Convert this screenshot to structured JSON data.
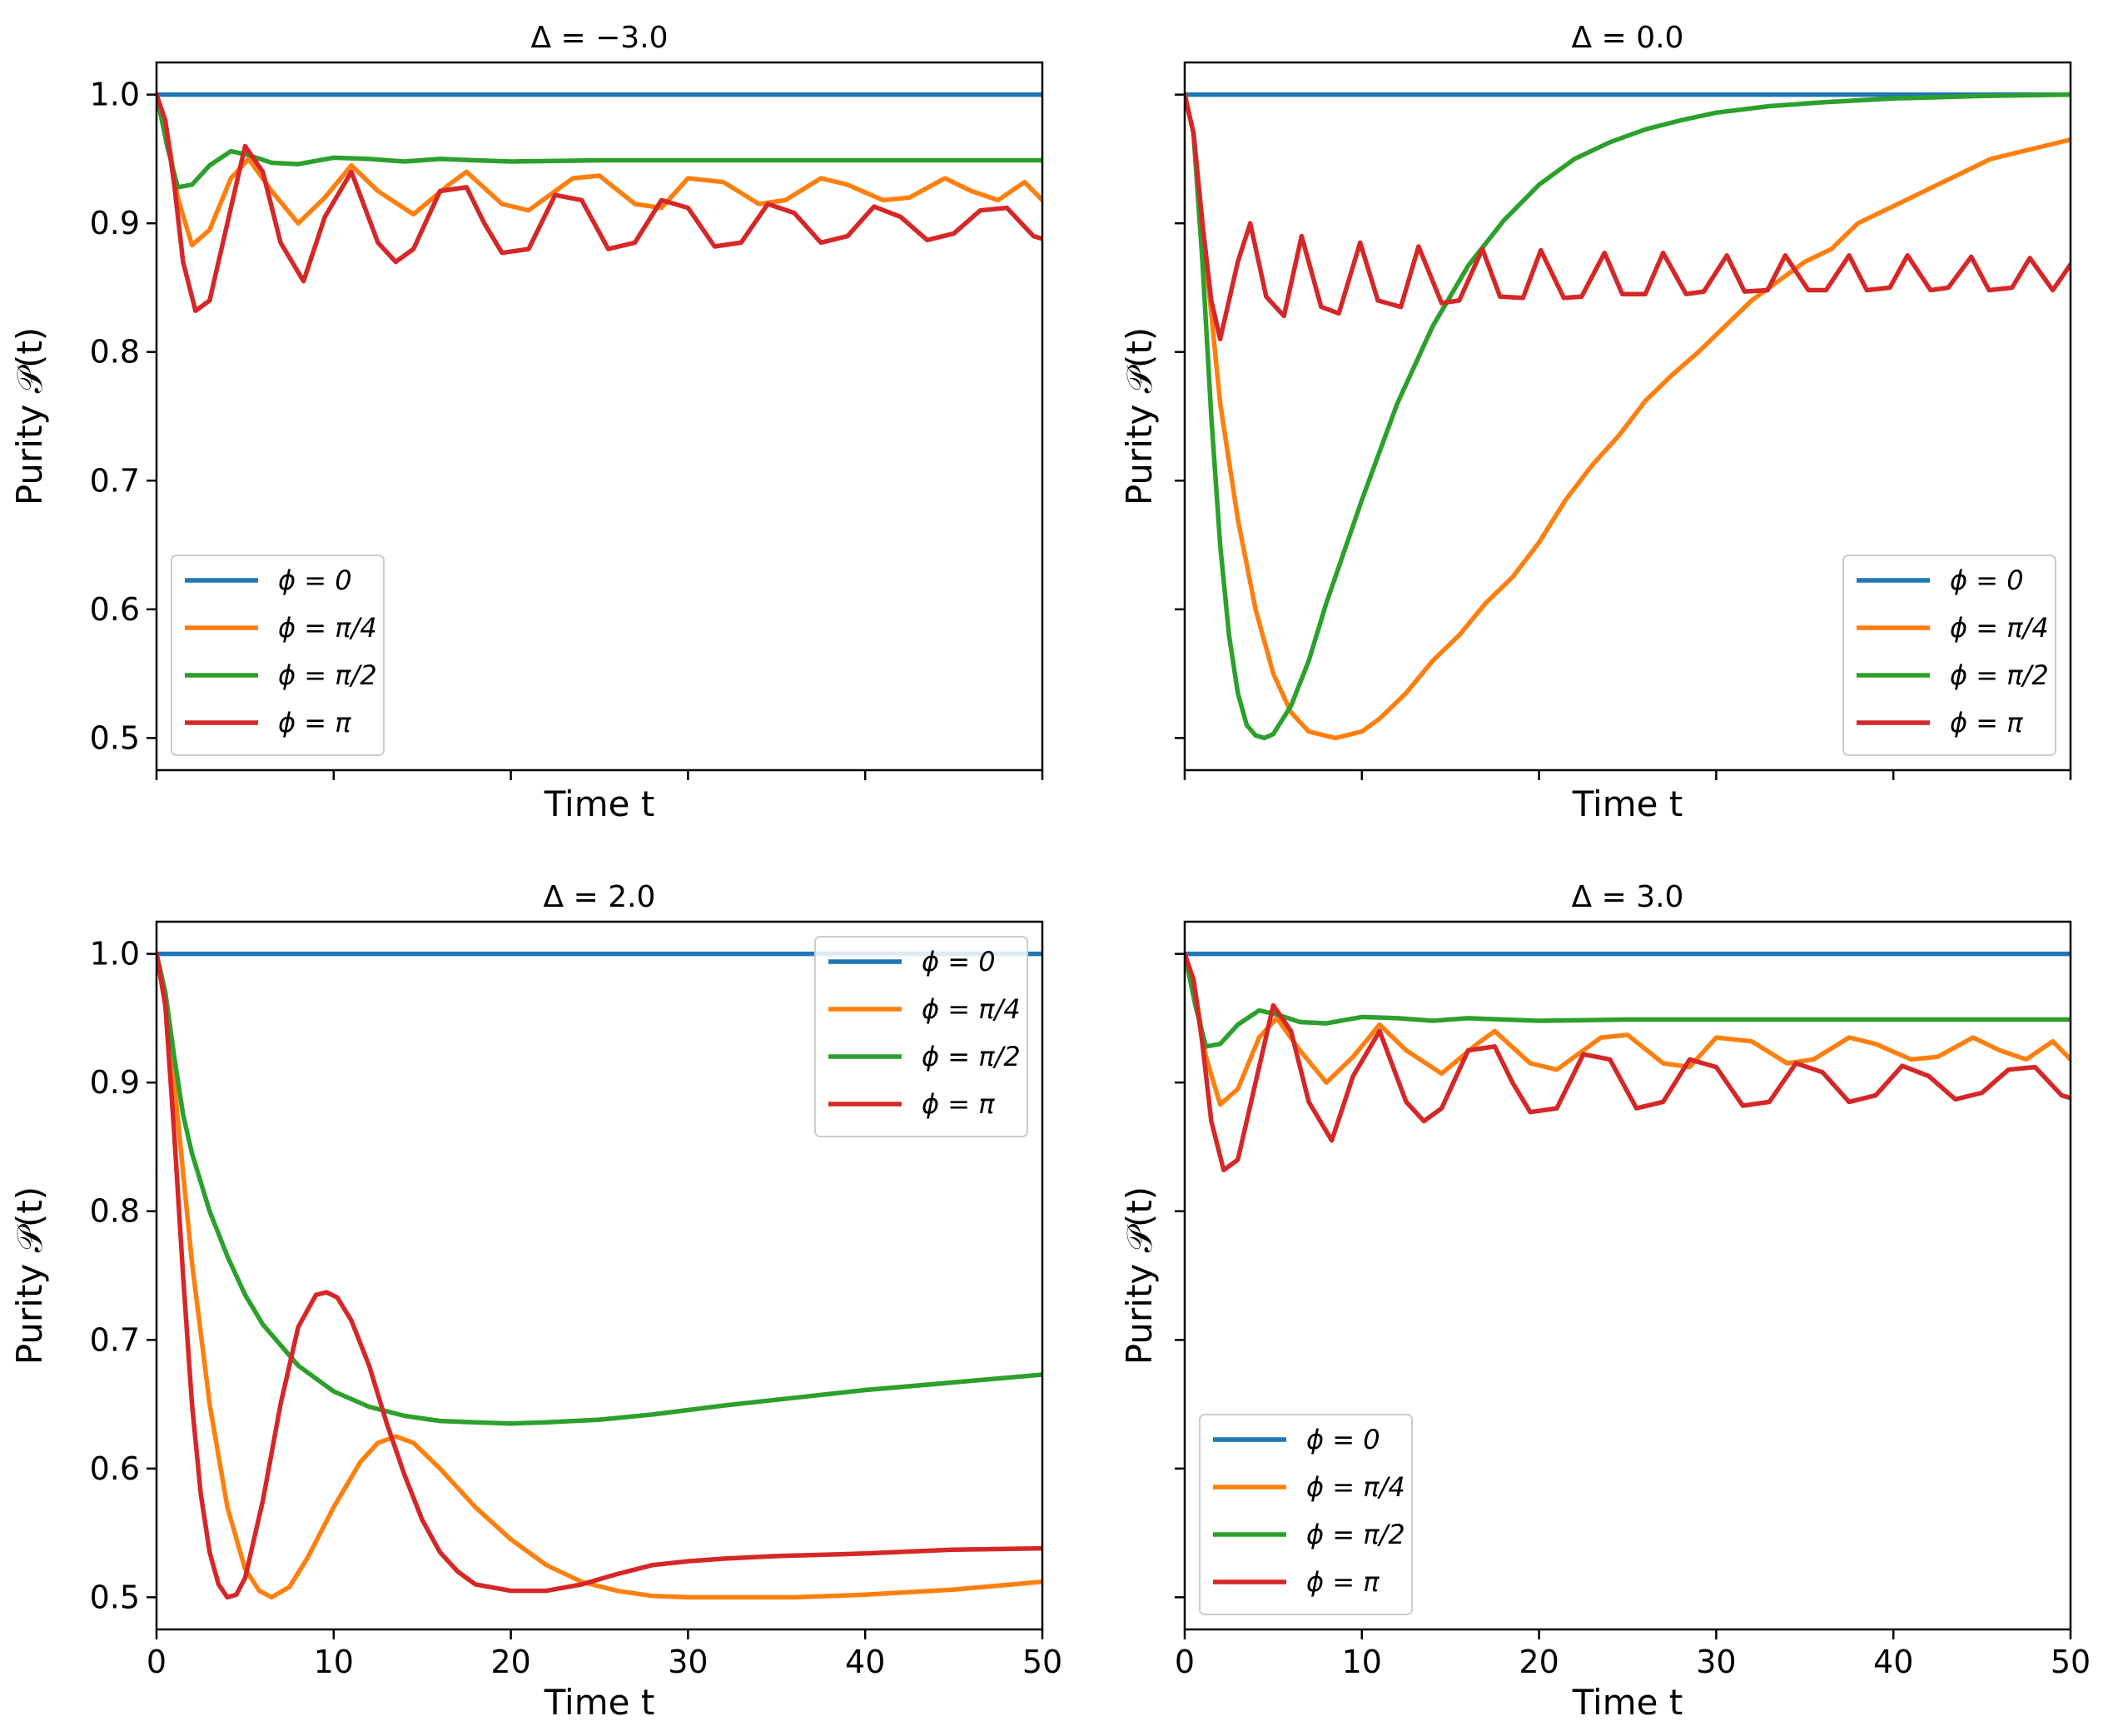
{
  "chart_data": [
    {
      "type": "line",
      "title": "Δ = −3.0",
      "xlabel": "Time t",
      "ylabel": "Purity 𝒫(t)",
      "xlim": [
        0,
        50
      ],
      "ylim": [
        0.475,
        1.025
      ],
      "xticks": [
        0,
        10,
        20,
        30,
        40,
        50
      ],
      "yticks": [
        0.5,
        0.6,
        0.7,
        0.8,
        0.9,
        1.0
      ],
      "show_xticklabels": false,
      "show_yticklabels": true,
      "legend": "lower-left",
      "series": [
        {
          "name": "ϕ = 0",
          "color": "#1f77b4",
          "x": [
            0,
            50
          ],
          "y": [
            1.0,
            1.0
          ]
        },
        {
          "name": "ϕ = π/4",
          "color": "#ff7f0e",
          "x": [
            0,
            0.6,
            1.2,
            2.0,
            3.0,
            4.2,
            5.2,
            6.5,
            8.0,
            9.5,
            11.0,
            12.5,
            14.5,
            16.5,
            17.5,
            19.5,
            21.0,
            23.5,
            25.0,
            27.0,
            28.5,
            30.0,
            32.0,
            34.0,
            35.5,
            37.5,
            39.0,
            41.0,
            42.5,
            44.5,
            46.0,
            47.5,
            49.0,
            50.0
          ],
          "y": [
            1.0,
            0.97,
            0.92,
            0.883,
            0.895,
            0.935,
            0.95,
            0.925,
            0.9,
            0.92,
            0.945,
            0.925,
            0.907,
            0.93,
            0.94,
            0.915,
            0.91,
            0.935,
            0.937,
            0.915,
            0.912,
            0.935,
            0.932,
            0.915,
            0.918,
            0.935,
            0.93,
            0.918,
            0.92,
            0.935,
            0.925,
            0.918,
            0.932,
            0.918
          ]
        },
        {
          "name": "ϕ = π/2",
          "color": "#2ca02c",
          "x": [
            0,
            0.6,
            1.2,
            2.0,
            3.0,
            4.2,
            5.2,
            6.5,
            8.0,
            10.0,
            12.0,
            14.0,
            16.0,
            18.0,
            20.0,
            25.0,
            30.0,
            35.0,
            40.0,
            45.0,
            50.0
          ],
          "y": [
            1.0,
            0.96,
            0.928,
            0.93,
            0.945,
            0.956,
            0.953,
            0.947,
            0.946,
            0.951,
            0.95,
            0.948,
            0.95,
            0.949,
            0.948,
            0.949,
            0.949,
            0.949,
            0.949,
            0.949,
            0.949
          ]
        },
        {
          "name": "ϕ = π",
          "color": "#d62728",
          "x": [
            0,
            0.5,
            1.0,
            1.5,
            2.2,
            3.0,
            4.0,
            5.0,
            6.0,
            7.0,
            8.3,
            9.5,
            11.0,
            12.5,
            13.5,
            14.5,
            16.0,
            17.5,
            18.5,
            19.5,
            21.0,
            22.5,
            24.0,
            25.5,
            27.0,
            28.5,
            30.0,
            31.5,
            33.0,
            34.5,
            36.0,
            37.5,
            39.0,
            40.5,
            42.0,
            43.5,
            45.0,
            46.5,
            48.0,
            49.5,
            50.0
          ],
          "y": [
            1.0,
            0.98,
            0.93,
            0.87,
            0.832,
            0.84,
            0.9,
            0.96,
            0.94,
            0.885,
            0.855,
            0.905,
            0.94,
            0.885,
            0.87,
            0.88,
            0.925,
            0.928,
            0.9,
            0.877,
            0.88,
            0.922,
            0.918,
            0.88,
            0.885,
            0.918,
            0.912,
            0.882,
            0.885,
            0.915,
            0.908,
            0.885,
            0.89,
            0.913,
            0.905,
            0.887,
            0.892,
            0.91,
            0.912,
            0.89,
            0.888
          ]
        }
      ]
    },
    {
      "type": "line",
      "title": "Δ = 0.0",
      "xlabel": "Time t",
      "ylabel": "Purity 𝒫(t)",
      "xlim": [
        0,
        50
      ],
      "ylim": [
        0.475,
        1.025
      ],
      "xticks": [
        0,
        10,
        20,
        30,
        40,
        50
      ],
      "yticks": [
        0.5,
        0.6,
        0.7,
        0.8,
        0.9,
        1.0
      ],
      "show_xticklabels": false,
      "show_yticklabels": false,
      "legend": "lower-right",
      "series": [
        {
          "name": "ϕ = 0",
          "color": "#1f77b4",
          "x": [
            0,
            50
          ],
          "y": [
            1.0,
            1.0
          ]
        },
        {
          "name": "ϕ = π/4",
          "color": "#ff7f0e",
          "x": [
            0,
            0.5,
            1.0,
            1.5,
            2.0,
            3.0,
            4.0,
            5.0,
            6.0,
            7.0,
            8.5,
            10.0,
            11.0,
            12.5,
            14.0,
            15.5,
            17.0,
            18.5,
            20.0,
            21.5,
            23.0,
            24.5,
            26.0,
            27.5,
            29.0,
            30.5,
            32.0,
            33.5,
            35.0,
            36.5,
            38.0,
            39.5,
            41.0,
            42.5,
            44.0,
            45.5,
            47.0,
            48.5,
            50.0
          ],
          "y": [
            1.0,
            0.97,
            0.9,
            0.83,
            0.76,
            0.67,
            0.6,
            0.55,
            0.52,
            0.505,
            0.5,
            0.505,
            0.515,
            0.535,
            0.56,
            0.58,
            0.605,
            0.625,
            0.652,
            0.685,
            0.712,
            0.735,
            0.762,
            0.782,
            0.8,
            0.82,
            0.84,
            0.855,
            0.87,
            0.88,
            0.9,
            0.91,
            0.92,
            0.93,
            0.94,
            0.95,
            0.955,
            0.96,
            0.965
          ]
        },
        {
          "name": "ϕ = π/2",
          "color": "#2ca02c",
          "x": [
            0,
            0.5,
            1.0,
            1.5,
            2.0,
            2.5,
            3.0,
            3.5,
            4.0,
            4.5,
            5.0,
            6.0,
            7.0,
            8.0,
            9.0,
            10.0,
            12.0,
            14.0,
            16.0,
            18.0,
            20.0,
            22.0,
            24.0,
            26.0,
            28.0,
            30.0,
            33.0,
            36.0,
            40.0,
            45.0,
            50.0
          ],
          "y": [
            1.0,
            0.97,
            0.87,
            0.75,
            0.65,
            0.58,
            0.535,
            0.51,
            0.502,
            0.5,
            0.503,
            0.525,
            0.56,
            0.605,
            0.645,
            0.685,
            0.76,
            0.82,
            0.867,
            0.902,
            0.93,
            0.95,
            0.963,
            0.973,
            0.98,
            0.986,
            0.991,
            0.994,
            0.997,
            0.999,
            1.0
          ]
        },
        {
          "name": "ϕ = π",
          "color": "#d62728",
          "x": [
            0,
            0.5,
            1.0,
            1.5,
            2.0,
            3.0,
            3.7,
            4.6,
            5.6,
            6.6,
            7.7,
            8.7,
            9.9,
            10.9,
            12.2,
            13.2,
            14.5,
            15.5,
            16.8,
            17.8,
            19.1,
            20.1,
            21.4,
            22.4,
            23.7,
            24.7,
            26.0,
            27.0,
            28.3,
            29.3,
            30.6,
            31.6,
            32.9,
            33.9,
            35.2,
            36.2,
            37.5,
            38.5,
            39.8,
            40.8,
            42.1,
            43.1,
            44.4,
            45.4,
            46.7,
            47.7,
            49.0,
            50.0
          ],
          "y": [
            1.0,
            0.97,
            0.9,
            0.84,
            0.81,
            0.87,
            0.9,
            0.843,
            0.828,
            0.89,
            0.835,
            0.83,
            0.885,
            0.84,
            0.835,
            0.882,
            0.838,
            0.84,
            0.88,
            0.843,
            0.842,
            0.879,
            0.842,
            0.843,
            0.877,
            0.845,
            0.845,
            0.877,
            0.845,
            0.847,
            0.875,
            0.847,
            0.848,
            0.875,
            0.848,
            0.848,
            0.875,
            0.848,
            0.85,
            0.875,
            0.848,
            0.85,
            0.874,
            0.848,
            0.85,
            0.873,
            0.848,
            0.868
          ]
        }
      ]
    },
    {
      "type": "line",
      "title": "Δ = 2.0",
      "xlabel": "Time t",
      "ylabel": "Purity 𝒫(t)",
      "xlim": [
        0,
        50
      ],
      "ylim": [
        0.475,
        1.025
      ],
      "xticks": [
        0,
        10,
        20,
        30,
        40,
        50
      ],
      "yticks": [
        0.5,
        0.6,
        0.7,
        0.8,
        0.9,
        1.0
      ],
      "xtick_labels": [
        "0",
        "10",
        "20",
        "30",
        "40",
        "50"
      ],
      "show_xticklabels": true,
      "show_yticklabels": true,
      "legend": "top-right",
      "series": [
        {
          "name": "ϕ = 0",
          "color": "#1f77b4",
          "x": [
            0,
            50
          ],
          "y": [
            1.0,
            1.0
          ]
        },
        {
          "name": "ϕ = π/4",
          "color": "#ff7f0e",
          "x": [
            0,
            0.5,
            1.0,
            1.5,
            2.0,
            3.0,
            4.0,
            5.0,
            5.8,
            6.5,
            7.5,
            8.5,
            10.0,
            11.5,
            12.5,
            13.5,
            14.5,
            16.0,
            18.0,
            20.0,
            22.0,
            24.0,
            26.0,
            28.0,
            30.0,
            33.0,
            36.0,
            40.0,
            45.0,
            50.0
          ],
          "y": [
            1.0,
            0.97,
            0.9,
            0.83,
            0.76,
            0.65,
            0.57,
            0.522,
            0.505,
            0.5,
            0.508,
            0.53,
            0.57,
            0.605,
            0.62,
            0.625,
            0.62,
            0.6,
            0.57,
            0.545,
            0.525,
            0.512,
            0.505,
            0.501,
            0.5,
            0.5,
            0.5,
            0.502,
            0.506,
            0.512
          ]
        },
        {
          "name": "ϕ = π/2",
          "color": "#2ca02c",
          "x": [
            0,
            0.5,
            1.0,
            1.5,
            2.0,
            3.0,
            4.0,
            5.0,
            6.0,
            8.0,
            10.0,
            12.0,
            14.0,
            16.0,
            18.0,
            20.0,
            22.0,
            25.0,
            28.0,
            32.0,
            36.0,
            40.0,
            45.0,
            50.0
          ],
          "y": [
            1.0,
            0.97,
            0.92,
            0.875,
            0.845,
            0.8,
            0.765,
            0.735,
            0.712,
            0.68,
            0.66,
            0.648,
            0.641,
            0.637,
            0.636,
            0.635,
            0.636,
            0.638,
            0.642,
            0.649,
            0.655,
            0.661,
            0.667,
            0.673
          ]
        },
        {
          "name": "ϕ = π",
          "color": "#d62728",
          "x": [
            0,
            0.5,
            1.0,
            1.5,
            2.0,
            2.5,
            3.0,
            3.5,
            4.0,
            4.5,
            5.0,
            6.0,
            7.0,
            8.0,
            9.0,
            9.6,
            10.2,
            11.0,
            12.0,
            13.0,
            14.0,
            15.0,
            16.0,
            17.0,
            18.0,
            20.0,
            22.0,
            24.0,
            26.0,
            28.0,
            30.0,
            32.0,
            35.0,
            40.0,
            45.0,
            50.0
          ],
          "y": [
            1.0,
            0.96,
            0.86,
            0.75,
            0.65,
            0.58,
            0.535,
            0.51,
            0.5,
            0.502,
            0.515,
            0.575,
            0.65,
            0.71,
            0.735,
            0.737,
            0.733,
            0.715,
            0.68,
            0.635,
            0.595,
            0.56,
            0.535,
            0.52,
            0.51,
            0.505,
            0.505,
            0.51,
            0.518,
            0.525,
            0.528,
            0.53,
            0.532,
            0.534,
            0.537,
            0.538
          ]
        }
      ]
    },
    {
      "type": "line",
      "title": "Δ = 3.0",
      "xlabel": "Time t",
      "ylabel": "Purity 𝒫(t)",
      "xlim": [
        0,
        50
      ],
      "ylim": [
        0.475,
        1.025
      ],
      "xticks": [
        0,
        10,
        20,
        30,
        40,
        50
      ],
      "yticks": [
        0.5,
        0.6,
        0.7,
        0.8,
        0.9,
        1.0
      ],
      "xtick_labels": [
        "0",
        "10",
        "20",
        "30",
        "40",
        "50"
      ],
      "show_xticklabels": true,
      "show_yticklabels": false,
      "legend": "lower-left",
      "series": [
        {
          "name": "ϕ = 0",
          "color": "#1f77b4",
          "x": [
            0,
            50
          ],
          "y": [
            1.0,
            1.0
          ]
        },
        {
          "name": "ϕ = π/4",
          "color": "#ff7f0e",
          "x": [
            0,
            0.6,
            1.2,
            2.0,
            3.0,
            4.2,
            5.2,
            6.5,
            8.0,
            9.5,
            11.0,
            12.5,
            14.5,
            16.5,
            17.5,
            19.5,
            21.0,
            23.5,
            25.0,
            27.0,
            28.5,
            30.0,
            32.0,
            34.0,
            35.5,
            37.5,
            39.0,
            41.0,
            42.5,
            44.5,
            46.0,
            47.5,
            49.0,
            50.0
          ],
          "y": [
            1.0,
            0.97,
            0.92,
            0.883,
            0.895,
            0.935,
            0.95,
            0.925,
            0.9,
            0.92,
            0.945,
            0.925,
            0.907,
            0.93,
            0.94,
            0.915,
            0.91,
            0.935,
            0.937,
            0.915,
            0.912,
            0.935,
            0.932,
            0.915,
            0.918,
            0.935,
            0.93,
            0.918,
            0.92,
            0.935,
            0.925,
            0.918,
            0.932,
            0.918
          ]
        },
        {
          "name": "ϕ = π/2",
          "color": "#2ca02c",
          "x": [
            0,
            0.6,
            1.2,
            2.0,
            3.0,
            4.2,
            5.2,
            6.5,
            8.0,
            10.0,
            12.0,
            14.0,
            16.0,
            18.0,
            20.0,
            25.0,
            30.0,
            35.0,
            40.0,
            45.0,
            50.0
          ],
          "y": [
            1.0,
            0.96,
            0.928,
            0.93,
            0.945,
            0.956,
            0.953,
            0.947,
            0.946,
            0.951,
            0.95,
            0.948,
            0.95,
            0.949,
            0.948,
            0.949,
            0.949,
            0.949,
            0.949,
            0.949,
            0.949
          ]
        },
        {
          "name": "ϕ = π",
          "color": "#d62728",
          "x": [
            0,
            0.5,
            1.0,
            1.5,
            2.2,
            3.0,
            4.0,
            5.0,
            6.0,
            7.0,
            8.3,
            9.5,
            11.0,
            12.5,
            13.5,
            14.5,
            16.0,
            17.5,
            18.5,
            19.5,
            21.0,
            22.5,
            24.0,
            25.5,
            27.0,
            28.5,
            30.0,
            31.5,
            33.0,
            34.5,
            36.0,
            37.5,
            39.0,
            40.5,
            42.0,
            43.5,
            45.0,
            46.5,
            48.0,
            49.5,
            50.0
          ],
          "y": [
            1.0,
            0.98,
            0.93,
            0.87,
            0.832,
            0.84,
            0.9,
            0.96,
            0.94,
            0.885,
            0.855,
            0.905,
            0.94,
            0.885,
            0.87,
            0.88,
            0.925,
            0.928,
            0.9,
            0.877,
            0.88,
            0.922,
            0.918,
            0.88,
            0.885,
            0.918,
            0.912,
            0.882,
            0.885,
            0.915,
            0.908,
            0.885,
            0.89,
            0.913,
            0.905,
            0.887,
            0.892,
            0.91,
            0.912,
            0.89,
            0.888
          ]
        }
      ]
    }
  ]
}
